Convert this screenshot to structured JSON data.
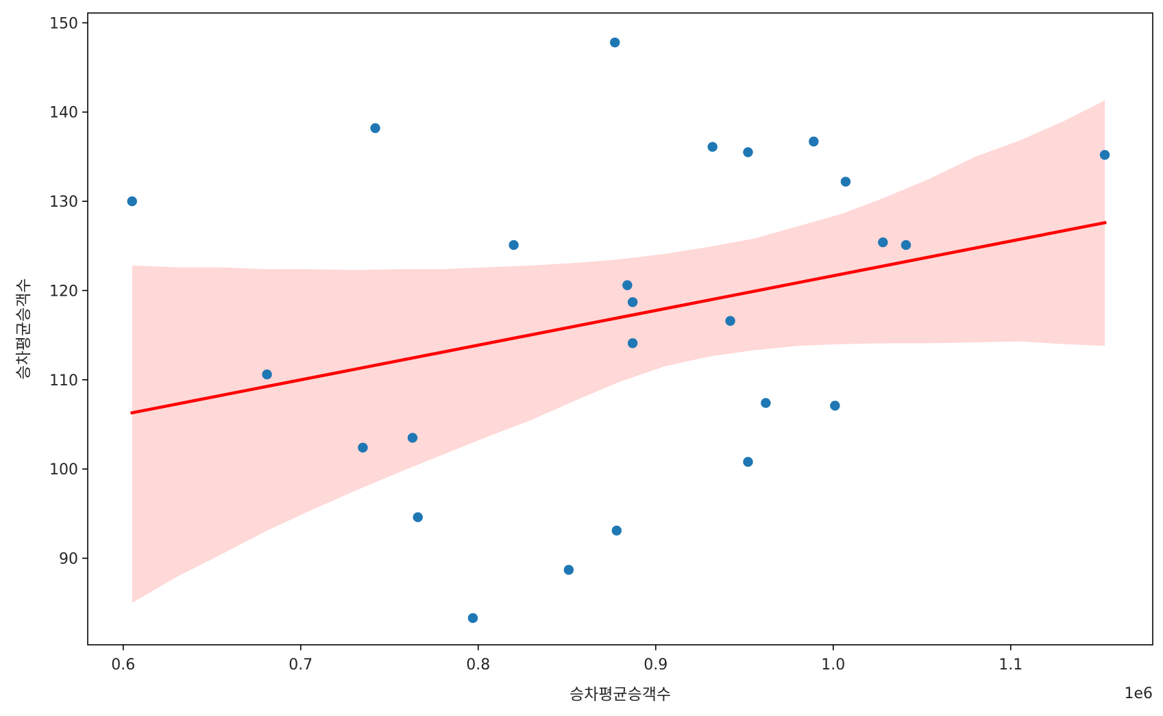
{
  "chart_data": {
    "type": "scatter",
    "title": "",
    "xlabel": "승차평균승객수",
    "ylabel": "승차평균승객수",
    "x_offset_label": "1e6",
    "xlim": [
      580000,
      1180000
    ],
    "ylim": [
      80.3,
      151.1
    ],
    "x_ticks": [
      600000,
      700000,
      800000,
      900000,
      1000000,
      1100000
    ],
    "x_tick_labels": [
      "0.6",
      "0.7",
      "0.8",
      "0.9",
      "1.0",
      "1.1"
    ],
    "y_ticks": [
      90,
      100,
      110,
      120,
      130,
      140,
      150
    ],
    "y_tick_labels": [
      "90",
      "100",
      "110",
      "120",
      "130",
      "140",
      "150"
    ],
    "grid": false,
    "colors": {
      "points": "#1f77b4",
      "fit_line": "#ff0000",
      "ci_band": "#ffd8d8"
    },
    "points": [
      {
        "x": 605000,
        "y": 130.0
      },
      {
        "x": 681000,
        "y": 110.6
      },
      {
        "x": 735000,
        "y": 102.4
      },
      {
        "x": 742000,
        "y": 138.2
      },
      {
        "x": 763000,
        "y": 103.5
      },
      {
        "x": 766000,
        "y": 94.6
      },
      {
        "x": 797000,
        "y": 83.3
      },
      {
        "x": 820000,
        "y": 125.1
      },
      {
        "x": 851000,
        "y": 88.7
      },
      {
        "x": 877000,
        "y": 147.8
      },
      {
        "x": 878000,
        "y": 93.1
      },
      {
        "x": 884000,
        "y": 120.6
      },
      {
        "x": 887000,
        "y": 118.7
      },
      {
        "x": 887000,
        "y": 114.1
      },
      {
        "x": 932000,
        "y": 136.1
      },
      {
        "x": 942000,
        "y": 116.6
      },
      {
        "x": 952000,
        "y": 135.5
      },
      {
        "x": 952000,
        "y": 100.8
      },
      {
        "x": 962000,
        "y": 107.4
      },
      {
        "x": 989000,
        "y": 136.7
      },
      {
        "x": 1001000,
        "y": 107.1
      },
      {
        "x": 1007000,
        "y": 132.2
      },
      {
        "x": 1028000,
        "y": 125.4
      },
      {
        "x": 1041000,
        "y": 125.1
      },
      {
        "x": 1153000,
        "y": 135.2
      }
    ],
    "regression": {
      "x": [
        605000,
        1153000
      ],
      "y": [
        106.3,
        127.6
      ]
    },
    "confidence_band": {
      "x": [
        605000,
        630000,
        655000,
        680000,
        705000,
        730000,
        755000,
        780000,
        805000,
        830000,
        855000,
        880000,
        905000,
        930000,
        955000,
        980000,
        1005000,
        1030000,
        1055000,
        1080000,
        1105000,
        1130000,
        1153000
      ],
      "upper": [
        122.8,
        122.6,
        122.6,
        122.4,
        122.4,
        122.3,
        122.4,
        122.4,
        122.6,
        122.8,
        123.1,
        123.5,
        124.1,
        124.9,
        125.8,
        127.2,
        128.6,
        130.5,
        132.6,
        135.0,
        136.8,
        139.0,
        141.3
      ],
      "lower": [
        85.0,
        87.9,
        90.4,
        93.0,
        95.3,
        97.5,
        99.6,
        101.6,
        103.6,
        105.5,
        107.7,
        109.8,
        111.5,
        112.6,
        113.3,
        113.8,
        114.0,
        114.1,
        114.1,
        114.2,
        114.3,
        114.0,
        113.8
      ]
    }
  }
}
